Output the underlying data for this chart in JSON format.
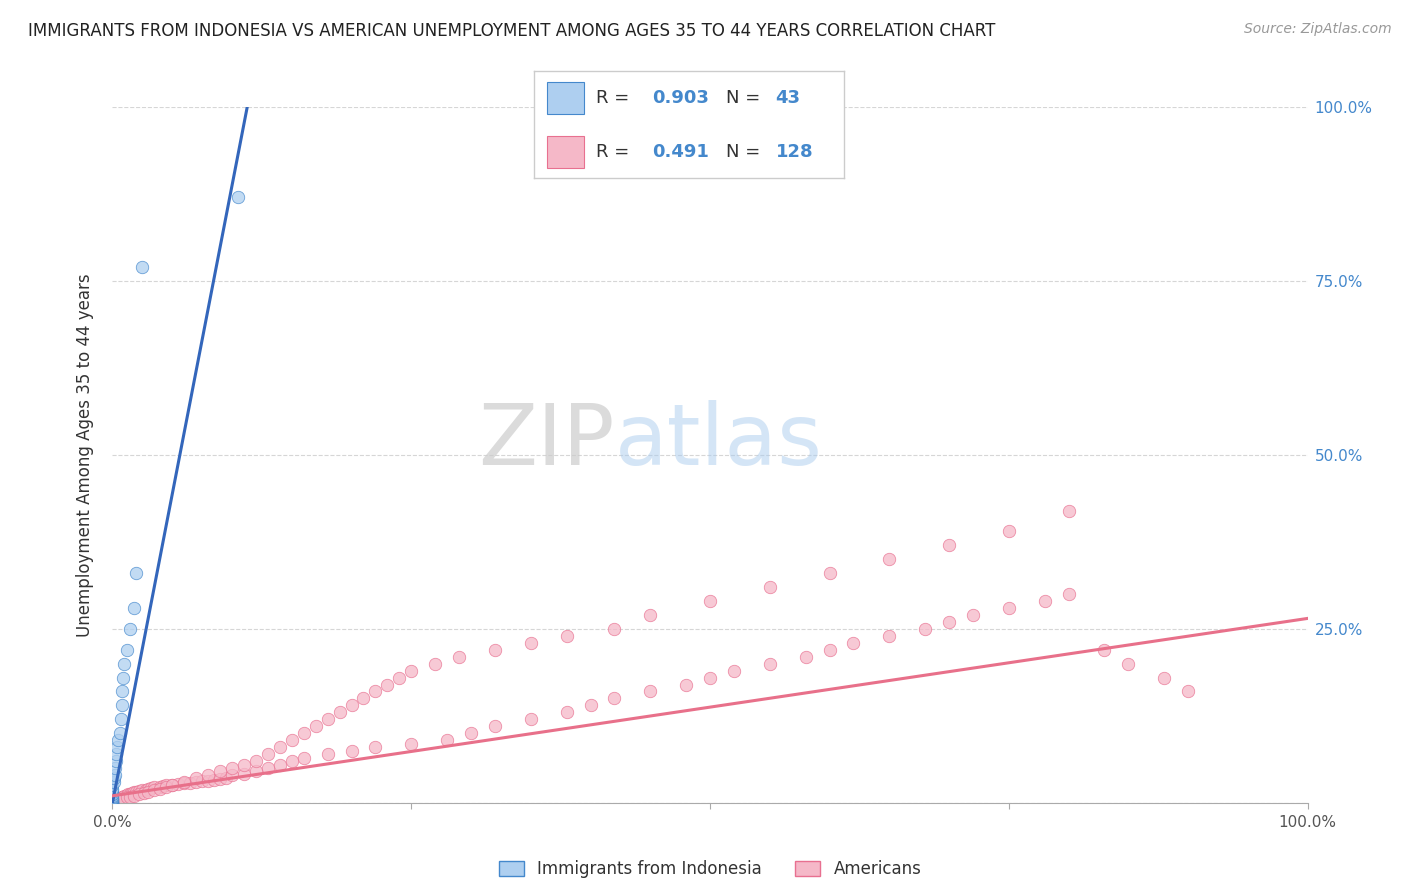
{
  "title": "IMMIGRANTS FROM INDONESIA VS AMERICAN UNEMPLOYMENT AMONG AGES 35 TO 44 YEARS CORRELATION CHART",
  "source": "Source: ZipAtlas.com",
  "ylabel": "Unemployment Among Ages 35 to 44 years",
  "xlabel_bottom": "Immigrants from Indonesia",
  "legend_label1": "Immigrants from Indonesia",
  "legend_label2": "Americans",
  "r1": 0.903,
  "n1": 43,
  "r2": 0.491,
  "n2": 128,
  "color_blue": "#AECFF0",
  "color_pink": "#F5B8C8",
  "edge_blue": "#4488CC",
  "edge_pink": "#E87090",
  "line_blue": "#3366BB",
  "line_pink": "#E8708A",
  "background_color": "#FFFFFF",
  "xlim": [
    0,
    1
  ],
  "ylim": [
    0,
    1
  ],
  "blue_x": [
    0.0,
    0.0,
    0.0,
    0.0,
    0.0,
    0.0,
    0.0,
    0.0,
    0.0,
    0.0,
    0.0,
    0.0,
    0.0,
    0.0,
    0.0,
    0.0,
    0.0,
    0.0,
    0.0,
    0.0,
    0.0,
    0.0,
    0.0,
    0.001,
    0.001,
    0.002,
    0.002,
    0.003,
    0.003,
    0.004,
    0.005,
    0.006,
    0.007,
    0.008,
    0.008,
    0.009,
    0.01,
    0.012,
    0.015,
    0.018,
    0.02,
    0.025,
    0.105
  ],
  "blue_y": [
    0.0,
    0.0,
    0.0,
    0.0,
    0.0,
    0.001,
    0.001,
    0.002,
    0.003,
    0.003,
    0.004,
    0.005,
    0.005,
    0.006,
    0.007,
    0.008,
    0.01,
    0.012,
    0.013,
    0.015,
    0.018,
    0.02,
    0.025,
    0.03,
    0.035,
    0.04,
    0.05,
    0.06,
    0.07,
    0.08,
    0.09,
    0.1,
    0.12,
    0.14,
    0.16,
    0.18,
    0.2,
    0.22,
    0.25,
    0.28,
    0.33,
    0.77,
    0.87
  ],
  "pink_x": [
    0.0,
    0.0,
    0.0,
    0.0,
    0.0,
    0.001,
    0.001,
    0.002,
    0.002,
    0.003,
    0.004,
    0.005,
    0.005,
    0.006,
    0.007,
    0.008,
    0.009,
    0.01,
    0.012,
    0.013,
    0.015,
    0.016,
    0.018,
    0.02,
    0.022,
    0.025,
    0.028,
    0.03,
    0.032,
    0.035,
    0.04,
    0.042,
    0.045,
    0.05,
    0.055,
    0.06,
    0.065,
    0.07,
    0.075,
    0.08,
    0.085,
    0.09,
    0.095,
    0.1,
    0.11,
    0.12,
    0.13,
    0.14,
    0.15,
    0.16,
    0.18,
    0.2,
    0.22,
    0.25,
    0.28,
    0.3,
    0.32,
    0.35,
    0.38,
    0.4,
    0.42,
    0.45,
    0.48,
    0.5,
    0.52,
    0.55,
    0.58,
    0.6,
    0.62,
    0.65,
    0.68,
    0.7,
    0.72,
    0.75,
    0.78,
    0.8,
    0.83,
    0.85,
    0.88,
    0.9,
    0.002,
    0.004,
    0.006,
    0.008,
    0.012,
    0.015,
    0.018,
    0.022,
    0.026,
    0.03,
    0.035,
    0.04,
    0.045,
    0.05,
    0.06,
    0.07,
    0.08,
    0.09,
    0.1,
    0.11,
    0.12,
    0.13,
    0.14,
    0.15,
    0.16,
    0.17,
    0.18,
    0.19,
    0.2,
    0.21,
    0.22,
    0.23,
    0.24,
    0.25,
    0.27,
    0.29,
    0.32,
    0.35,
    0.38,
    0.42,
    0.45,
    0.5,
    0.55,
    0.6,
    0.65,
    0.7,
    0.75,
    0.8
  ],
  "pink_y": [
    0.0,
    0.0,
    0.001,
    0.001,
    0.002,
    0.002,
    0.003,
    0.003,
    0.004,
    0.004,
    0.005,
    0.005,
    0.006,
    0.007,
    0.007,
    0.008,
    0.009,
    0.01,
    0.011,
    0.012,
    0.013,
    0.014,
    0.015,
    0.016,
    0.017,
    0.018,
    0.019,
    0.02,
    0.021,
    0.022,
    0.023,
    0.024,
    0.025,
    0.026,
    0.027,
    0.028,
    0.029,
    0.03,
    0.031,
    0.032,
    0.033,
    0.034,
    0.035,
    0.04,
    0.042,
    0.045,
    0.05,
    0.055,
    0.06,
    0.065,
    0.07,
    0.075,
    0.08,
    0.085,
    0.09,
    0.1,
    0.11,
    0.12,
    0.13,
    0.14,
    0.15,
    0.16,
    0.17,
    0.18,
    0.19,
    0.2,
    0.21,
    0.22,
    0.23,
    0.24,
    0.25,
    0.26,
    0.27,
    0.28,
    0.29,
    0.3,
    0.22,
    0.2,
    0.18,
    0.16,
    0.003,
    0.004,
    0.005,
    0.006,
    0.008,
    0.009,
    0.01,
    0.012,
    0.014,
    0.016,
    0.018,
    0.02,
    0.022,
    0.025,
    0.03,
    0.035,
    0.04,
    0.045,
    0.05,
    0.055,
    0.06,
    0.07,
    0.08,
    0.09,
    0.1,
    0.11,
    0.12,
    0.13,
    0.14,
    0.15,
    0.16,
    0.17,
    0.18,
    0.19,
    0.2,
    0.21,
    0.22,
    0.23,
    0.24,
    0.25,
    0.27,
    0.29,
    0.31,
    0.33,
    0.35,
    0.37,
    0.39,
    0.42
  ],
  "blue_trend_x": [
    0.0,
    0.115
  ],
  "blue_trend_y": [
    0.0,
    1.02
  ],
  "pink_trend_x": [
    0.0,
    1.0
  ],
  "pink_trend_y": [
    0.01,
    0.265
  ]
}
